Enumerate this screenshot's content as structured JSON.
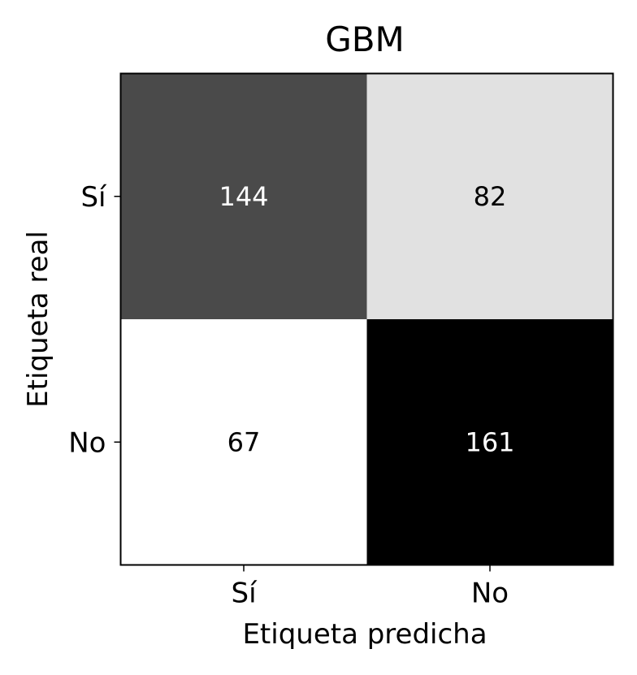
{
  "chart_data": {
    "type": "heatmap",
    "title": "GBM",
    "xlabel": "Etiqueta predicha",
    "ylabel": "Etiqueta real",
    "x_categories": [
      "Sí",
      "No"
    ],
    "y_categories": [
      "Sí",
      "No"
    ],
    "values": [
      [
        144,
        82
      ],
      [
        67,
        161
      ]
    ],
    "colormap": "greys",
    "value_range": [
      67,
      161
    ],
    "grid": false,
    "colors": {
      "low": "#ffffff",
      "high": "#000000",
      "text_on_dark": "#ffffff",
      "text_on_light": "#000000"
    }
  }
}
